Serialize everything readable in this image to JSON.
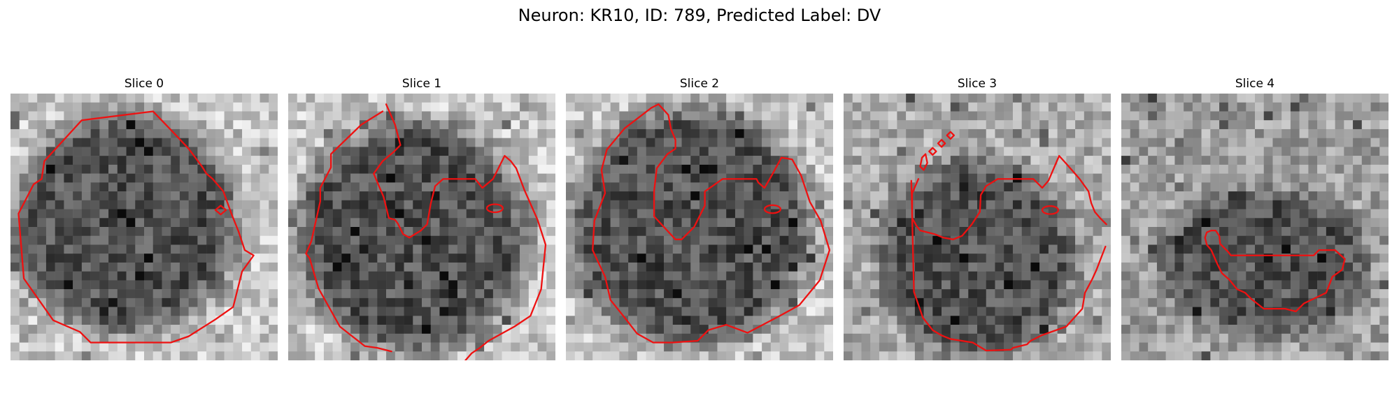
{
  "figure": {
    "title": "Neuron: KR10, ID: 789, Predicted Label: DV"
  },
  "colors": {
    "contour": "#ee1111",
    "colormap": "gray"
  },
  "slices": [
    {
      "title": "Slice 0"
    },
    {
      "title": "Slice 1"
    },
    {
      "title": "Slice 2"
    },
    {
      "title": "Slice 3"
    },
    {
      "title": "Slice 4"
    }
  ]
}
